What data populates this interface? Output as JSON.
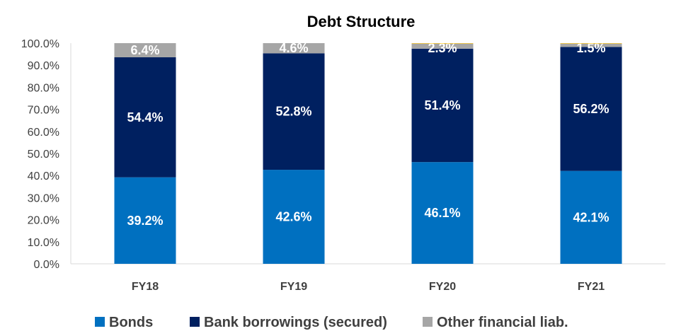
{
  "chart_data": {
    "type": "bar",
    "stacked": true,
    "title": "Debt Structure",
    "xlabel": "",
    "ylabel": "",
    "ylim": [
      0,
      100
    ],
    "yticks": [
      "0.0%",
      "10.0%",
      "20.0%",
      "30.0%",
      "40.0%",
      "50.0%",
      "60.0%",
      "70.0%",
      "80.0%",
      "90.0%",
      "100.0%"
    ],
    "categories": [
      "FY18",
      "FY19",
      "FY20",
      "FY21"
    ],
    "series": [
      {
        "name": "Bonds",
        "color": "#0070c0",
        "values": [
          39.2,
          42.6,
          46.1,
          42.1
        ],
        "labels": [
          "39.2%",
          "42.6%",
          "46.1%",
          "42.1%"
        ]
      },
      {
        "name": "Bank borrowings (secured)",
        "color": "#002060",
        "values": [
          54.4,
          52.8,
          51.4,
          56.2
        ],
        "labels": [
          "54.4%",
          "52.8%",
          "51.4%",
          "56.2%"
        ]
      },
      {
        "name": "Other financial liab.",
        "color": "#a6a6a6",
        "values": [
          6.4,
          4.6,
          2.3,
          1.5
        ],
        "labels": [
          "6.4%",
          "4.6%",
          "2.3%",
          "1.5%"
        ]
      },
      {
        "color": "#ffc000",
        "values": [
          0,
          0,
          0.2,
          0.2
        ],
        "labels": [
          "",
          "",
          "",
          ""
        ]
      }
    ],
    "legend": {
      "position": "bottom"
    },
    "grid": false
  }
}
